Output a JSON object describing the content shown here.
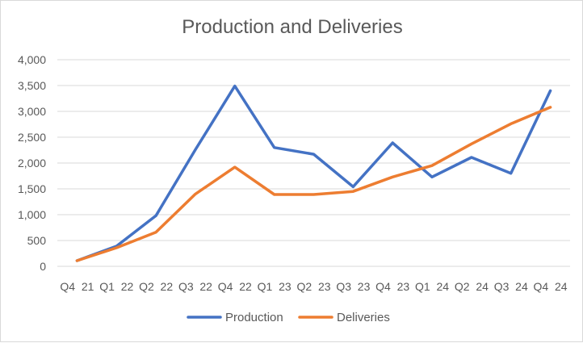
{
  "chart_data": {
    "type": "line",
    "title": "Production and Deliveries",
    "categories": [
      "Q4  21",
      "Q1  22",
      "Q2  22",
      "Q3  22",
      "Q4  22",
      "Q1  23",
      "Q2  23",
      "Q3  23",
      "Q4  23",
      "Q1  24",
      "Q2  24",
      "Q3  24",
      "Q4  24"
    ],
    "series": [
      {
        "name": "Production",
        "color": "#4472c4",
        "values": [
          110,
          390,
          980,
          2260,
          3490,
          2300,
          2170,
          1540,
          2390,
          1730,
          2110,
          1800,
          3400
        ]
      },
      {
        "name": "Deliveries",
        "color": "#ed7d31",
        "values": [
          110,
          360,
          660,
          1400,
          1920,
          1390,
          1390,
          1450,
          1730,
          1950,
          2370,
          2760,
          3080
        ]
      }
    ],
    "ylim": [
      0,
      4000
    ],
    "yticks": [
      0,
      500,
      1000,
      1500,
      2000,
      2500,
      3000,
      3500,
      4000
    ],
    "ytick_labels": [
      "0",
      "500",
      "1,000",
      "1,500",
      "2,000",
      "2,500",
      "3,000",
      "3,500",
      "4,000"
    ],
    "xlabel": "",
    "ylabel": "",
    "grid": true,
    "legend_position": "bottom"
  }
}
